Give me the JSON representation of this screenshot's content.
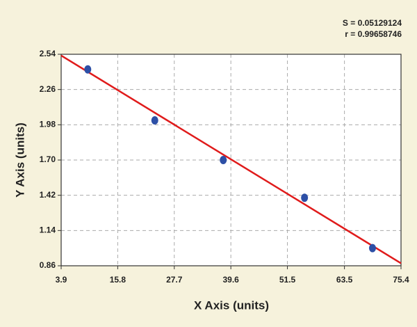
{
  "chart_data": {
    "type": "scatter",
    "x_label": "X Axis (units)",
    "y_label": "Y Axis (units)",
    "annotations": [
      "S = 0.05129124",
      "r = 0.99658746"
    ],
    "series": [
      {
        "color": "#2d4fa6",
        "x": [
          9.5,
          23.6,
          38.0,
          55.1,
          69.4
        ],
        "values": [
          2.42,
          2.015,
          1.7,
          1.4,
          1.0
        ]
      }
    ],
    "fit_line": {
      "color": "#e01b1b",
      "x": [
        3.9,
        75.4
      ],
      "values": [
        2.53,
        0.88
      ]
    },
    "xlim": [
      3.9,
      75.4
    ],
    "ylim": [
      0.86,
      2.54
    ],
    "xticks": [
      3.9,
      15.8,
      27.7,
      39.6,
      51.5,
      63.5,
      75.4
    ],
    "yticks": [
      0.86,
      1.14,
      1.42,
      {
        "value": 1.7,
        "label": "1.70"
      },
      1.98,
      2.26,
      2.54
    ],
    "grid": true
  }
}
